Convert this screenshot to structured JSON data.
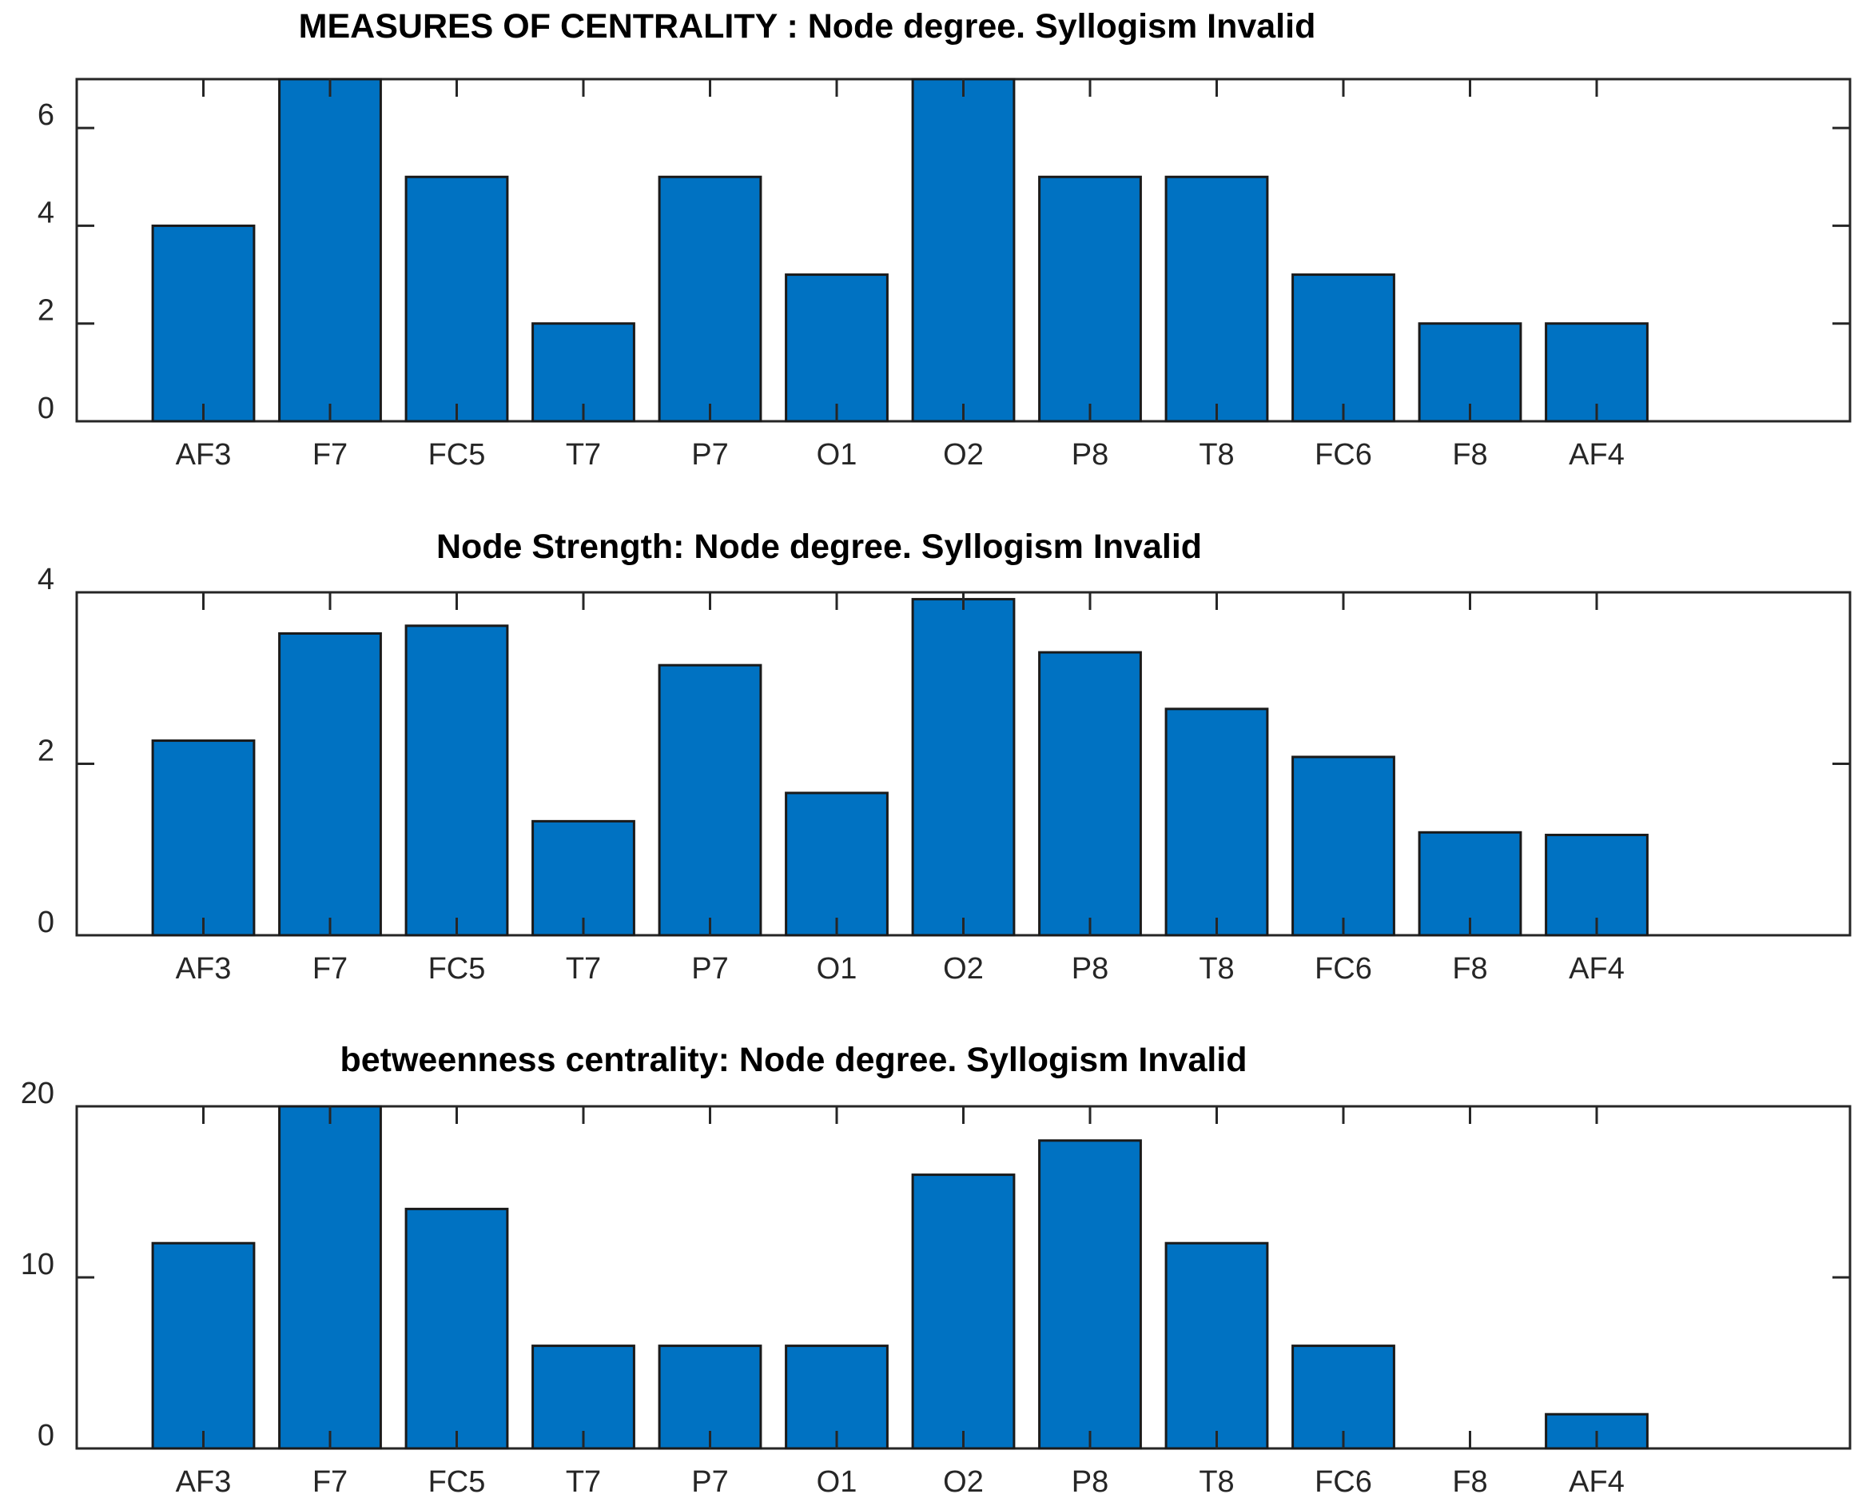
{
  "chart_data": [
    {
      "type": "bar",
      "title": "MEASURES OF CENTRALITY : Node degree. Syllogism  Invalid",
      "categories": [
        "AF3",
        "F7",
        "FC5",
        "T7",
        "P7",
        "O1",
        "O2",
        "P8",
        "T8",
        "FC6",
        "F8",
        "AF4"
      ],
      "values": [
        4,
        7,
        5,
        2,
        5,
        3,
        7,
        5,
        5,
        3,
        2,
        2
      ],
      "yticks": [
        0,
        2,
        4,
        6
      ],
      "ytick_labels": [
        "0",
        "2",
        "4",
        "6"
      ],
      "ylim": [
        0,
        7
      ],
      "xlim": [
        0,
        14
      ],
      "xlabel": "",
      "ylabel": "",
      "bar_color": "#0072C2"
    },
    {
      "type": "bar",
      "title": "Node Strength: Node degree. Syllogism  Invalid",
      "categories": [
        "AF3",
        "F7",
        "FC5",
        "T7",
        "P7",
        "O1",
        "O2",
        "P8",
        "T8",
        "FC6",
        "F8",
        "AF4"
      ],
      "values": [
        2.27,
        3.52,
        3.61,
        1.33,
        3.15,
        1.66,
        3.92,
        3.3,
        2.64,
        2.08,
        1.2,
        1.17
      ],
      "yticks": [
        0,
        2,
        4
      ],
      "ytick_labels": [
        "0",
        "2",
        "4"
      ],
      "ylim": [
        0,
        4
      ],
      "xlim": [
        0,
        14
      ],
      "xlabel": "",
      "ylabel": "",
      "bar_color": "#0072C2"
    },
    {
      "type": "bar",
      "title": "betweenness centrality: Node degree. Syllogism  Invalid",
      "categories": [
        "AF3",
        "F7",
        "FC5",
        "T7",
        "P7",
        "O1",
        "O2",
        "P8",
        "T8",
        "FC6",
        "F8",
        "AF4"
      ],
      "values": [
        12,
        20,
        14,
        6,
        6,
        6,
        16,
        18,
        12,
        6,
        0,
        2
      ],
      "yticks": [
        0,
        10,
        20
      ],
      "ytick_labels": [
        "0",
        "10",
        "20"
      ],
      "ylim": [
        0,
        20
      ],
      "xlim": [
        0,
        14
      ],
      "xlabel": "",
      "ylabel": "",
      "bar_color": "#0072C2"
    }
  ]
}
